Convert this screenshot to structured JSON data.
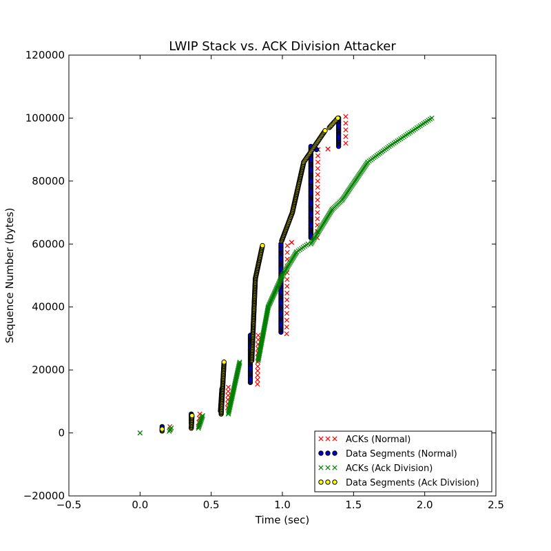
{
  "chart_data": {
    "type": "scatter",
    "title": "LWIP Stack vs. ACK Division Attacker",
    "xlabel": "Time (sec)",
    "ylabel": "Sequence Number (bytes)",
    "xlim": [
      -0.5,
      2.5
    ],
    "ylim": [
      -20000,
      120000
    ],
    "xticks": [
      -0.5,
      0.0,
      0.5,
      1.0,
      1.5,
      2.0,
      2.5
    ],
    "xtick_labels": [
      "−0.5",
      "0.0",
      "0.5",
      "1.0",
      "1.5",
      "2.0",
      "2.5"
    ],
    "yticks": [
      -20000,
      0,
      20000,
      40000,
      60000,
      80000,
      100000,
      120000
    ],
    "ytick_labels": [
      "−20000",
      "0",
      "20000",
      "40000",
      "60000",
      "80000",
      "100000",
      "120000"
    ],
    "grid": false,
    "legend_position": "lower-right",
    "series": [
      {
        "name": "ACKs (Normal)",
        "marker": "x",
        "color": "#ff0000",
        "groups": [
          {
            "x": [
              0.21,
              0.21
            ],
            "y": [
              1000,
              2000
            ],
            "step": 1000
          },
          {
            "x": [
              0.41,
              0.42
            ],
            "y": [
              2000,
              6000
            ],
            "step": 1300
          },
          {
            "x": [
              0.615,
              0.62
            ],
            "y": [
              8000,
              14500
            ],
            "step": 1400
          },
          {
            "x": [
              0.825,
              0.83
            ],
            "y": [
              15500,
              31000
            ],
            "step": 1400
          },
          {
            "x": [
              1.03,
              1.035
            ],
            "y": [
              31500,
              59500
            ],
            "step": 2100
          },
          {
            "x": [
              1.065,
              1.065
            ],
            "y": [
              60500,
              60500
            ],
            "step": 1000
          },
          {
            "x": [
              1.245,
              1.25
            ],
            "y": [
              62000,
              90000
            ],
            "step": 2000
          },
          {
            "x": [
              1.32,
              1.32
            ],
            "y": [
              90200,
              90200
            ],
            "step": 1000
          },
          {
            "x": [
              1.445,
              1.445
            ],
            "y": [
              92000,
              100500
            ],
            "step": 2100
          }
        ]
      },
      {
        "name": "Data Segments (Normal)",
        "marker": "o",
        "color": "#0000cc",
        "groups": [
          {
            "x": [
              0.155,
              0.155
            ],
            "y": [
              1000,
              2000
            ],
            "step": 500
          },
          {
            "x": [
              0.36,
              0.36
            ],
            "y": [
              3000,
              6000
            ],
            "step": 500
          },
          {
            "x": [
              0.565,
              0.575
            ],
            "y": [
              7000,
              14000
            ],
            "step": 500
          },
          {
            "x": [
              0.775,
              0.775
            ],
            "y": [
              16000,
              31000
            ],
            "step": 500
          },
          {
            "x": [
              0.99,
              0.99
            ],
            "y": [
              32000,
              60000
            ],
            "step": 500
          },
          {
            "x": [
              1.2,
              1.2
            ],
            "y": [
              62000,
              91000
            ],
            "step": 500
          },
          {
            "x": [
              1.24,
              1.24
            ],
            "y": [
              90000,
              90000
            ],
            "step": 500
          },
          {
            "x": [
              1.395,
              1.395
            ],
            "y": [
              91000,
              100000
            ],
            "step": 500
          }
        ]
      },
      {
        "name": "ACKs (Ack Division)",
        "marker": "x",
        "color": "#007f00",
        "groups": [
          {
            "x": [
              0.0,
              0.0
            ],
            "y": [
              0,
              0
            ],
            "step": 500
          },
          {
            "x": [
              0.205,
              0.22
            ],
            "y": [
              500,
              1600
            ],
            "step": 350
          },
          {
            "x": [
              0.41,
              0.44
            ],
            "y": [
              1500,
              5500
            ],
            "step": 350
          },
          {
            "x": [
              0.62,
              0.7
            ],
            "y": [
              6000,
              22500
            ],
            "step": 350
          },
          {
            "x": [
              0.83,
              0.9
            ],
            "y": [
              23000,
              40000
            ],
            "step": 350
          },
          {
            "x": [
              0.9,
              1.0
            ],
            "y": [
              40000,
              50000
            ],
            "step": 350
          },
          {
            "x": [
              1.0,
              1.1
            ],
            "y": [
              50000,
              57500
            ],
            "step": 350
          },
          {
            "x": [
              1.1,
              1.18
            ],
            "y": [
              57500,
              60000
            ],
            "step": 350
          },
          {
            "x": [
              1.2,
              1.35
            ],
            "y": [
              60000,
              71000
            ],
            "step": 350
          },
          {
            "x": [
              1.35,
              1.42
            ],
            "y": [
              71000,
              74000
            ],
            "step": 350
          },
          {
            "x": [
              1.42,
              1.6
            ],
            "y": [
              74000,
              86000
            ],
            "step": 350
          },
          {
            "x": [
              1.6,
              1.75
            ],
            "y": [
              86000,
              91000
            ],
            "step": 350
          },
          {
            "x": [
              1.75,
              2.05
            ],
            "y": [
              91000,
              100000
            ],
            "step": 350
          }
        ]
      },
      {
        "name": "Data Segments (Ack Division)",
        "marker": "o",
        "color": "#ffff00",
        "groups": [
          {
            "x": [
              0.155,
              0.155
            ],
            "y": [
              600,
              1200
            ],
            "step": 300
          },
          {
            "x": [
              0.36,
              0.365
            ],
            "y": [
              1500,
              5500
            ],
            "step": 300
          },
          {
            "x": [
              0.57,
              0.59
            ],
            "y": [
              6000,
              22500
            ],
            "step": 300
          },
          {
            "x": [
              0.785,
              0.81
            ],
            "y": [
              23000,
              49000
            ],
            "step": 300
          },
          {
            "x": [
              0.81,
              0.86
            ],
            "y": [
              49000,
              59500
            ],
            "step": 300
          },
          {
            "x": [
              0.995,
              1.07
            ],
            "y": [
              61000,
              70000
            ],
            "step": 300
          },
          {
            "x": [
              1.07,
              1.15
            ],
            "y": [
              70000,
              86000
            ],
            "step": 300
          },
          {
            "x": [
              1.15,
              1.3
            ],
            "y": [
              86000,
              96000
            ],
            "step": 300
          },
          {
            "x": [
              1.33,
              1.39
            ],
            "y": [
              97000,
              100000
            ],
            "step": 300
          }
        ]
      }
    ]
  }
}
